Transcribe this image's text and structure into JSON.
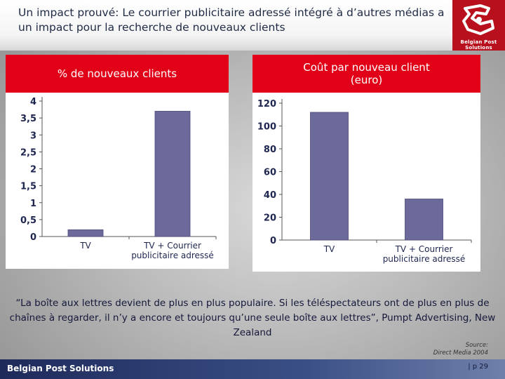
{
  "slide": {
    "title": "Un impact prouvé: Le courrier publicitaire adressé intégré à d’autres médias a un impact pour la recherche de nouveaux clients",
    "brand": "Belgian Post Solutions",
    "quote": "“La boîte aux lettres devient de plus en plus populaire. Si les téléspectateurs ont de plus en plus de chaînes à regarder, il n’y a encore et toujours qu’une seule boîte aux lettres”, Pumpt Advertising, New Zealand",
    "source_line1": "Source:",
    "source_line2": "Direct Media 2004",
    "page_number": "| p 29",
    "colors": {
      "accent": "#e10018",
      "bar": "#6b6a9b",
      "navy": "#1e2a5a"
    }
  },
  "chart_data": [
    {
      "type": "bar",
      "title": "% de nouveaux clients",
      "categories": [
        "TV",
        "TV + Courrier publicitaire adressé"
      ],
      "values": [
        0.2,
        3.7
      ],
      "yticks": [
        "0",
        "0,5",
        "1",
        "1,5",
        "2",
        "2,5",
        "3",
        "3,5",
        "4"
      ],
      "ylim": [
        0,
        4
      ],
      "xlabel": "",
      "ylabel": ""
    },
    {
      "type": "bar",
      "title": "Coût par nouveau client (euro)",
      "categories": [
        "TV",
        "TV + Courrier publicitaire adressé"
      ],
      "values": [
        112,
        36
      ],
      "yticks": [
        "0",
        "20",
        "40",
        "60",
        "80",
        "100",
        "120"
      ],
      "ylim": [
        0,
        120
      ],
      "xlabel": "",
      "ylabel": ""
    }
  ]
}
